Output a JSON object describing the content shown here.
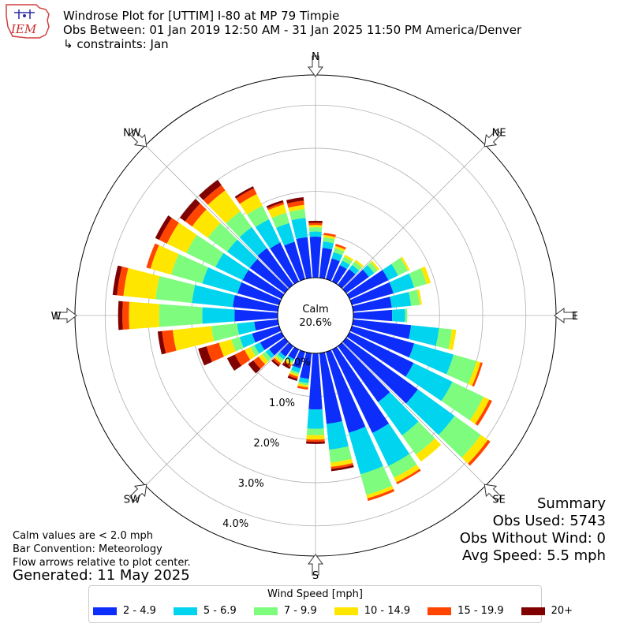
{
  "header": {
    "title": "Windrose Plot for [UTTIM] I-80 at MP 79 Timpie",
    "obs_between": "Obs Between: 01 Jan 2019 12:50 AM - 31 Jan 2025 11:50 PM America/Denver",
    "constraints": "↳ constraints: Jan",
    "logo_text": "IEM"
  },
  "notes": {
    "calm_note": "Calm values are < 2.0 mph",
    "bar_convention": "Bar Convention: Meteorology",
    "flow_arrows": "Flow arrows relative to plot center.",
    "generated": "Generated: 11 May 2025"
  },
  "summary": {
    "title": "Summary",
    "obs_used": "Obs Used: 5743",
    "obs_without_wind": "Obs Without Wind: 0",
    "avg_speed": "Avg Speed: 5.5 mph"
  },
  "legend": {
    "title": "Wind Speed [mph]",
    "items": [
      {
        "label": "2 - 4.9",
        "color": "#0d2dfb"
      },
      {
        "label": "5 - 6.9",
        "color": "#00d4ee"
      },
      {
        "label": "7 - 9.9",
        "color": "#7dfc7d"
      },
      {
        "label": "10 - 14.9",
        "color": "#ffe600"
      },
      {
        "label": "15 - 19.9",
        "color": "#ff4500"
      },
      {
        "label": "20+",
        "color": "#800000"
      }
    ]
  },
  "chart_data": {
    "type": "windrose",
    "directions": [
      "N",
      "NE",
      "E",
      "SE",
      "S",
      "SW",
      "W",
      "NW"
    ],
    "calm_label": "Calm",
    "calm_value": "20.6%",
    "radial_labels": [
      "0.0%",
      "1.0%",
      "2.0%",
      "3.0%",
      "4.0%"
    ],
    "radial_max": 4.7,
    "bins": [
      "2 - 4.9",
      "5 - 6.9",
      "7 - 9.9",
      "10 - 14.9",
      "15 - 19.9",
      "20+"
    ],
    "sectors": [
      {
        "dir": 0,
        "values": [
          0.95,
          0.12,
          0.1,
          0.05,
          0.05,
          0.05
        ]
      },
      {
        "dir": 10,
        "values": [
          0.7,
          0.15,
          0.1,
          0.05,
          0.05,
          0
        ]
      },
      {
        "dir": 20,
        "values": [
          0.5,
          0.15,
          0.1,
          0.05,
          0.05,
          0
        ]
      },
      {
        "dir": 30,
        "values": [
          0.42,
          0.12,
          0.1,
          0.05,
          0,
          0
        ]
      },
      {
        "dir": 40,
        "values": [
          0.45,
          0.12,
          0.1,
          0.05,
          0,
          0
        ]
      },
      {
        "dir": 50,
        "values": [
          0.65,
          0.15,
          0.1,
          0.05,
          0,
          0
        ]
      },
      {
        "dir": 60,
        "values": [
          1.0,
          0.25,
          0.25,
          0.05,
          0,
          0
        ]
      },
      {
        "dir": 70,
        "values": [
          1.0,
          0.5,
          0.3,
          0.1,
          0,
          0
        ]
      },
      {
        "dir": 80,
        "values": [
          0.9,
          0.45,
          0.2,
          0.05,
          0,
          0
        ]
      },
      {
        "dir": 90,
        "values": [
          0.9,
          0.3,
          0.05,
          0,
          0,
          0
        ]
      },
      {
        "dir": 100,
        "values": [
          1.35,
          0.65,
          0.3,
          0.1,
          0,
          0
        ]
      },
      {
        "dir": 110,
        "values": [
          1.5,
          0.95,
          0.55,
          0.1,
          0.05,
          0
        ]
      },
      {
        "dir": 120,
        "values": [
          1.65,
          1.0,
          0.8,
          0.15,
          0.07,
          0
        ]
      },
      {
        "dir": 130,
        "values": [
          2.05,
          1.05,
          0.75,
          0.2,
          0.07,
          0
        ]
      },
      {
        "dir": 140,
        "values": [
          1.6,
          0.95,
          0.55,
          0.2,
          0,
          0
        ]
      },
      {
        "dir": 150,
        "values": [
          2.15,
          0.85,
          0.3,
          0.12,
          0.05,
          0
        ]
      },
      {
        "dir": 160,
        "values": [
          1.95,
          1.0,
          0.5,
          0.08,
          0.06,
          0
        ]
      },
      {
        "dir": 170,
        "values": [
          1.65,
          0.6,
          0.3,
          0.1,
          0.05,
          0.05
        ]
      },
      {
        "dir": 180,
        "values": [
          1.3,
          0.45,
          0.15,
          0.1,
          0.05,
          0.05
        ]
      },
      {
        "dir": 190,
        "values": [
          0.6,
          0.1,
          0.05,
          0.05,
          0.05,
          0
        ]
      },
      {
        "dir": 200,
        "values": [
          0.4,
          0.1,
          0.05,
          0.05,
          0.05,
          0.05
        ]
      },
      {
        "dir": 210,
        "values": [
          0.25,
          0.05,
          0.05,
          0.05,
          0.05,
          0.05
        ]
      },
      {
        "dir": 220,
        "values": [
          0.3,
          0.08,
          0.06,
          0.05,
          0.05,
          0.05
        ]
      },
      {
        "dir": 230,
        "values": [
          0.45,
          0.1,
          0.1,
          0.1,
          0.15,
          0.15
        ]
      },
      {
        "dir": 240,
        "values": [
          0.55,
          0.15,
          0.1,
          0.15,
          0.25,
          0.2
        ]
      },
      {
        "dir": 250,
        "values": [
          0.65,
          0.3,
          0.2,
          0.3,
          0.3,
          0.2
        ]
      },
      {
        "dir": 260,
        "values": [
          0.55,
          0.4,
          0.6,
          0.9,
          0.25,
          0.1
        ]
      },
      {
        "dir": 270,
        "values": [
          1.0,
          0.75,
          1.0,
          0.7,
          0.15,
          0.1
        ]
      },
      {
        "dir": 280,
        "values": [
          1.05,
          0.95,
          0.85,
          0.75,
          0.15,
          0.1
        ]
      },
      {
        "dir": 290,
        "values": [
          1.0,
          0.85,
          0.75,
          0.5,
          0.1,
          0
        ]
      },
      {
        "dir": 300,
        "values": [
          1.0,
          0.7,
          0.75,
          0.5,
          0.2,
          0.1
        ]
      },
      {
        "dir": 310,
        "values": [
          1.0,
          0.65,
          0.55,
          0.45,
          0.2,
          0.15
        ]
      },
      {
        "dir": 320,
        "values": [
          1.05,
          0.6,
          0.45,
          0.6,
          0.15,
          0.15
        ]
      },
      {
        "dir": 330,
        "values": [
          1.0,
          0.6,
          0.35,
          0.3,
          0.15,
          0.05
        ]
      },
      {
        "dir": 340,
        "values": [
          0.9,
          0.45,
          0.25,
          0.2,
          0.05,
          0.05
        ]
      },
      {
        "dir": 350,
        "values": [
          0.95,
          0.45,
          0.2,
          0.1,
          0.1,
          0.08
        ]
      }
    ]
  }
}
